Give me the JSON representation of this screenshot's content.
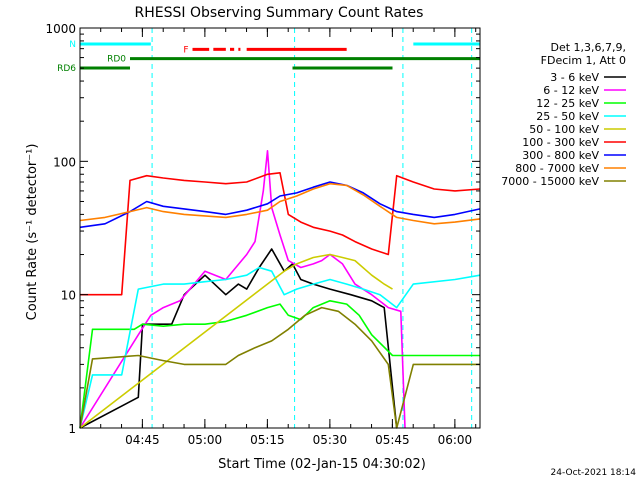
{
  "chart_data": {
    "type": "line",
    "title": "RHESSI Observing Summary Count Rates",
    "xlabel": "Start Time (02-Jan-15 04:30:02)",
    "ylabel": "Count Rate (s⁻¹ detector⁻¹)",
    "yscale": "log",
    "ylim": [
      1,
      1000
    ],
    "xlim_minutes_after_start": [
      0,
      96
    ],
    "x_ticks": [
      {
        "label": "04:45",
        "minute": 14.97
      },
      {
        "label": "05:00",
        "minute": 29.97
      },
      {
        "label": "05:15",
        "minute": 44.97
      },
      {
        "label": "05:30",
        "minute": 59.97
      },
      {
        "label": "05:45",
        "minute": 74.97
      },
      {
        "label": "06:00",
        "minute": 89.97
      }
    ],
    "y_ticks": [
      {
        "label": "1",
        "value": 1
      },
      {
        "label": "10",
        "value": 10
      },
      {
        "label": "100",
        "value": 100
      },
      {
        "label": "1000",
        "value": 1000
      }
    ],
    "legend_title": [
      "Det 1,3,6,7,9,",
      "FDecim 1, Att 0"
    ],
    "legend_position": "outside-right",
    "grid": false,
    "series": [
      {
        "name": "3 - 6 keV",
        "color": "#000000",
        "points": [
          [
            0,
            1
          ],
          [
            14,
            1.7
          ],
          [
            15,
            6
          ],
          [
            22,
            6
          ],
          [
            25,
            10
          ],
          [
            30,
            14
          ],
          [
            35,
            10
          ],
          [
            38,
            12
          ],
          [
            40,
            11
          ],
          [
            43,
            16
          ],
          [
            46,
            22
          ],
          [
            49,
            15
          ],
          [
            51,
            17
          ],
          [
            53,
            13
          ],
          [
            56,
            12
          ],
          [
            60,
            11
          ],
          [
            65,
            10
          ],
          [
            70,
            9
          ],
          [
            73,
            8
          ],
          [
            76,
            1
          ]
        ]
      },
      {
        "name": "6 - 12 keV",
        "color": "#ff00ff",
        "points": [
          [
            0,
            1
          ],
          [
            14,
            5
          ],
          [
            17,
            7
          ],
          [
            20,
            8
          ],
          [
            24,
            9
          ],
          [
            30,
            15
          ],
          [
            35,
            13
          ],
          [
            40,
            20
          ],
          [
            42,
            25
          ],
          [
            44,
            60
          ],
          [
            45,
            120
          ],
          [
            46,
            45
          ],
          [
            48,
            28
          ],
          [
            50,
            18
          ],
          [
            53,
            16
          ],
          [
            56,
            17
          ],
          [
            58,
            18
          ],
          [
            60,
            20
          ],
          [
            63,
            17
          ],
          [
            66,
            12
          ],
          [
            70,
            10
          ],
          [
            74,
            8
          ],
          [
            77,
            7.5
          ],
          [
            78,
            1
          ]
        ]
      },
      {
        "name": "12 - 25 keV",
        "color": "#00ff00",
        "points": [
          [
            0,
            1
          ],
          [
            3,
            5.5
          ],
          [
            13,
            5.5
          ],
          [
            15,
            6
          ],
          [
            20,
            5.8
          ],
          [
            25,
            6
          ],
          [
            30,
            6
          ],
          [
            35,
            6.3
          ],
          [
            40,
            7
          ],
          [
            45,
            8
          ],
          [
            48,
            8.5
          ],
          [
            50,
            7
          ],
          [
            53,
            6.5
          ],
          [
            56,
            8
          ],
          [
            60,
            9
          ],
          [
            64,
            8.5
          ],
          [
            67,
            7
          ],
          [
            70,
            5
          ],
          [
            75,
            3.5
          ],
          [
            90,
            3.5
          ],
          [
            96,
            3.5
          ]
        ]
      },
      {
        "name": "25 - 50 keV",
        "color": "#00ffff",
        "points": [
          [
            0,
            1
          ],
          [
            3,
            2.5
          ],
          [
            10,
            2.5
          ],
          [
            14,
            11
          ],
          [
            20,
            12
          ],
          [
            25,
            12
          ],
          [
            30,
            12.5
          ],
          [
            35,
            13
          ],
          [
            40,
            14
          ],
          [
            43,
            16
          ],
          [
            46,
            15
          ],
          [
            49,
            10
          ],
          [
            52,
            11
          ],
          [
            56,
            12
          ],
          [
            60,
            13
          ],
          [
            64,
            12
          ],
          [
            68,
            11
          ],
          [
            72,
            10
          ],
          [
            76,
            8
          ],
          [
            80,
            12
          ],
          [
            90,
            13
          ],
          [
            96,
            14
          ]
        ]
      },
      {
        "name": "50 - 100 keV",
        "color": "#cccc00",
        "points": [
          [
            0,
            1
          ],
          [
            49,
            15
          ],
          [
            52,
            17
          ],
          [
            56,
            19
          ],
          [
            60,
            20
          ],
          [
            63,
            19
          ],
          [
            66,
            18
          ],
          [
            70,
            14
          ],
          [
            73,
            12
          ],
          [
            75,
            11
          ]
        ]
      },
      {
        "name": "100 - 300 keV",
        "color": "#ff0000",
        "points": [
          [
            0,
            10
          ],
          [
            10,
            10
          ],
          [
            12,
            72
          ],
          [
            16,
            78
          ],
          [
            20,
            75
          ],
          [
            25,
            72
          ],
          [
            30,
            70
          ],
          [
            35,
            68
          ],
          [
            40,
            70
          ],
          [
            45,
            80
          ],
          [
            48,
            82
          ],
          [
            50,
            40
          ],
          [
            53,
            35
          ],
          [
            56,
            32
          ],
          [
            60,
            30
          ],
          [
            63,
            28
          ],
          [
            66,
            25
          ],
          [
            70,
            22
          ],
          [
            74,
            20
          ],
          [
            76,
            78
          ],
          [
            80,
            70
          ],
          [
            85,
            62
          ],
          [
            90,
            60
          ],
          [
            96,
            62
          ]
        ]
      },
      {
        "name": "300 - 800 keV",
        "color": "#0000ff",
        "points": [
          [
            0,
            32
          ],
          [
            6,
            34
          ],
          [
            12,
            42
          ],
          [
            16,
            50
          ],
          [
            20,
            46
          ],
          [
            25,
            44
          ],
          [
            30,
            42
          ],
          [
            35,
            40
          ],
          [
            40,
            43
          ],
          [
            45,
            48
          ],
          [
            48,
            55
          ],
          [
            52,
            58
          ],
          [
            56,
            64
          ],
          [
            60,
            70
          ],
          [
            64,
            66
          ],
          [
            68,
            58
          ],
          [
            72,
            48
          ],
          [
            76,
            42
          ],
          [
            80,
            40
          ],
          [
            85,
            38
          ],
          [
            90,
            40
          ],
          [
            96,
            44
          ]
        ]
      },
      {
        "name": "800 - 7000 keV",
        "color": "#ff8000",
        "points": [
          [
            0,
            36
          ],
          [
            6,
            38
          ],
          [
            12,
            42
          ],
          [
            16,
            45
          ],
          [
            20,
            42
          ],
          [
            25,
            40
          ],
          [
            30,
            39
          ],
          [
            35,
            38
          ],
          [
            40,
            40
          ],
          [
            45,
            43
          ],
          [
            48,
            50
          ],
          [
            52,
            55
          ],
          [
            56,
            62
          ],
          [
            60,
            68
          ],
          [
            64,
            66
          ],
          [
            68,
            56
          ],
          [
            72,
            46
          ],
          [
            76,
            38
          ],
          [
            80,
            36
          ],
          [
            85,
            34
          ],
          [
            90,
            35
          ],
          [
            96,
            37
          ]
        ]
      },
      {
        "name": "7000 - 15000 keV",
        "color": "#808000",
        "points": [
          [
            0,
            1
          ],
          [
            3,
            3.3
          ],
          [
            14,
            3.5
          ],
          [
            20,
            3.2
          ],
          [
            25,
            3
          ],
          [
            30,
            3
          ],
          [
            35,
            3
          ],
          [
            38,
            3.5
          ],
          [
            42,
            4
          ],
          [
            46,
            4.5
          ],
          [
            50,
            5.5
          ],
          [
            54,
            7
          ],
          [
            58,
            8
          ],
          [
            62,
            7.5
          ],
          [
            66,
            6
          ],
          [
            70,
            4.5
          ],
          [
            74,
            3
          ],
          [
            76,
            1
          ],
          [
            80,
            3
          ],
          [
            85,
            3
          ],
          [
            90,
            3
          ],
          [
            96,
            3
          ]
        ]
      }
    ],
    "flags": [
      {
        "label": "N",
        "color": "#00ffff",
        "log_y": 2.88,
        "segments": [
          [
            0,
            17
          ],
          [
            80,
            96
          ]
        ]
      },
      {
        "label": "F",
        "color": "#ff0000",
        "log_y": 2.84,
        "segments": [
          [
            27,
            31
          ],
          [
            32,
            35
          ],
          [
            36,
            37
          ],
          [
            38,
            38.5
          ],
          [
            40,
            64
          ]
        ]
      },
      {
        "label": "RD0",
        "color": "#008000",
        "log_y": 2.77,
        "segments": [
          [
            12,
            51
          ],
          [
            51,
            75
          ],
          [
            75,
            96
          ]
        ]
      },
      {
        "label": "RD6",
        "color": "#008000",
        "log_y": 2.7,
        "segments": [
          [
            0,
            12
          ],
          [
            51,
            75
          ]
        ]
      }
    ],
    "saa_lines_minutes": [
      0,
      17.3,
      51.5,
      77.5,
      94
    ]
  },
  "footer": {
    "date": "24-Oct-2021 18:14"
  }
}
